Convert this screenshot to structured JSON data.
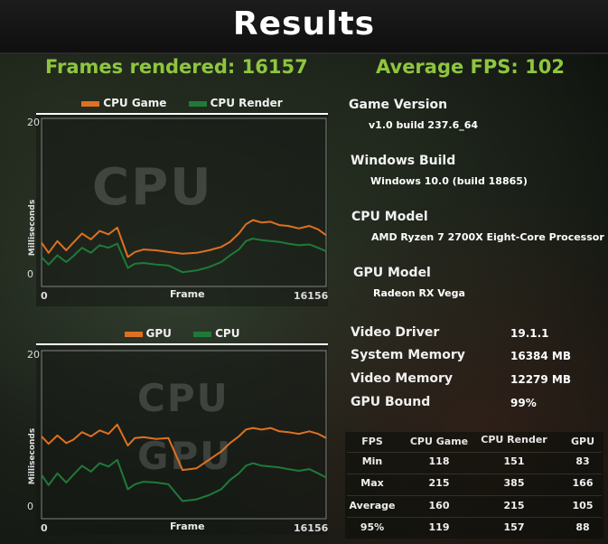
{
  "title": "Results",
  "frames_rendered": "Frames rendered: 16157",
  "average_fps": "Average FPS: 102",
  "chart_data": [
    {
      "type": "line",
      "watermarks": [
        "CPU"
      ],
      "legend": [
        {
          "name": "CPU Game",
          "color": "#e07020"
        },
        {
          "name": "CPU Render",
          "color": "#1f7a3a"
        }
      ],
      "ylabel": "Milliseconds",
      "xlabel": "Frame",
      "xlim": [
        0,
        16156
      ],
      "x_tick_labels": [
        "0",
        "16156"
      ],
      "ylim": [
        0,
        20
      ],
      "y_tick_labels": [
        "20",
        "0"
      ],
      "x": [
        0,
        400,
        900,
        1400,
        1800,
        2300,
        2800,
        3300,
        3800,
        4300,
        4900,
        5300,
        5800,
        6500,
        7200,
        8000,
        8800,
        9500,
        10200,
        10700,
        11200,
        11600,
        12000,
        12500,
        13000,
        13500,
        14000,
        14600,
        15200,
        15700,
        16156
      ],
      "series": [
        {
          "name": "CPU Game",
          "values": [
            5.2,
            4.0,
            5.4,
            4.3,
            5.2,
            6.3,
            5.6,
            6.6,
            6.2,
            7.0,
            3.5,
            4.1,
            4.4,
            4.3,
            4.1,
            3.9,
            4.0,
            4.3,
            4.7,
            5.3,
            6.3,
            7.4,
            7.9,
            7.6,
            7.7,
            7.3,
            7.2,
            6.9,
            7.2,
            6.8,
            6.1
          ]
        },
        {
          "name": "CPU Render",
          "values": [
            3.5,
            2.6,
            3.7,
            2.9,
            3.6,
            4.6,
            4.0,
            4.9,
            4.6,
            5.1,
            2.2,
            2.7,
            2.8,
            2.6,
            2.5,
            1.7,
            1.9,
            2.3,
            2.9,
            3.7,
            4.4,
            5.4,
            5.7,
            5.5,
            5.4,
            5.3,
            5.1,
            4.9,
            5.0,
            4.6,
            4.2
          ]
        }
      ]
    },
    {
      "type": "line",
      "watermarks": [
        "CPU",
        "GPU"
      ],
      "legend": [
        {
          "name": "GPU",
          "color": "#e07020"
        },
        {
          "name": "CPU",
          "color": "#1f7a3a"
        }
      ],
      "ylabel": "Milliseconds",
      "xlabel": "Frame",
      "xlim": [
        0,
        16156
      ],
      "x_tick_labels": [
        "0",
        "16156"
      ],
      "ylim": [
        0,
        20
      ],
      "y_tick_labels": [
        "20",
        "0"
      ],
      "x": [
        0,
        400,
        900,
        1400,
        1800,
        2300,
        2800,
        3300,
        3800,
        4300,
        4900,
        5300,
        5800,
        6500,
        7200,
        8000,
        8800,
        9500,
        10200,
        10700,
        11200,
        11600,
        12000,
        12500,
        13000,
        13500,
        14000,
        14600,
        15200,
        15700,
        16156
      ],
      "series": [
        {
          "name": "GPU",
          "values": [
            9.8,
            8.9,
            9.9,
            9.0,
            9.4,
            10.3,
            9.8,
            10.5,
            10.1,
            11.2,
            8.7,
            9.6,
            9.7,
            9.5,
            9.6,
            5.8,
            6.0,
            7.0,
            8.0,
            9.0,
            9.8,
            10.6,
            10.8,
            10.6,
            10.8,
            10.4,
            10.3,
            10.1,
            10.4,
            10.1,
            9.6
          ]
        },
        {
          "name": "CPU",
          "values": [
            5.2,
            4.0,
            5.4,
            4.3,
            5.2,
            6.3,
            5.6,
            6.6,
            6.2,
            7.0,
            3.5,
            4.1,
            4.4,
            4.3,
            4.1,
            2.1,
            2.3,
            2.8,
            3.5,
            4.6,
            5.4,
            6.3,
            6.6,
            6.3,
            6.2,
            6.1,
            5.9,
            5.7,
            5.9,
            5.4,
            4.9
          ]
        }
      ]
    }
  ],
  "system_info": {
    "game_version_label": "Game Version",
    "game_version_value": "v1.0 build 237.6_64",
    "windows_build_label": "Windows Build",
    "windows_build_value": "Windows 10.0 (build 18865)",
    "cpu_model_label": "CPU Model",
    "cpu_model_value": "AMD Ryzen 7 2700X Eight-Core Processor",
    "gpu_model_label": "GPU Model",
    "gpu_model_value": "Radeon RX Vega"
  },
  "details": [
    {
      "label": "Video Driver",
      "value": "19.1.1"
    },
    {
      "label": "System Memory",
      "value": "16384 MB"
    },
    {
      "label": "Video Memory",
      "value": "12279 MB"
    },
    {
      "label": "GPU Bound",
      "value": "99%"
    }
  ],
  "stats_table": {
    "headers": [
      "FPS",
      "CPU Game",
      "CPU Render",
      "GPU"
    ],
    "rows": [
      [
        "Min",
        "118",
        "151",
        "83"
      ],
      [
        "Max",
        "215",
        "385",
        "166"
      ],
      [
        "Average",
        "160",
        "215",
        "105"
      ],
      [
        "95%",
        "119",
        "157",
        "88"
      ]
    ]
  }
}
